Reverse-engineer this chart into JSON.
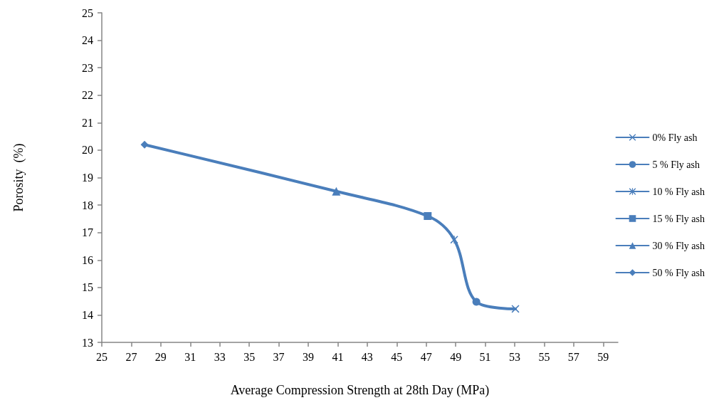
{
  "chart_data": {
    "type": "line",
    "xlabel": "Average Compression Strength at 28th Day (MPa)",
    "ylabel": "Porosity  (%)",
    "xlim": [
      25,
      60
    ],
    "xticks": [
      25,
      27,
      29,
      31,
      33,
      35,
      37,
      39,
      41,
      43,
      45,
      47,
      49,
      51,
      53,
      55,
      57,
      59
    ],
    "ylim": [
      13,
      25
    ],
    "yticks": [
      13,
      14,
      15,
      16,
      17,
      18,
      19,
      20,
      21,
      22,
      23,
      24,
      25
    ],
    "grid": false,
    "legend": "right",
    "line_style": "solid",
    "series": [
      {
        "color": "#4a7ebb",
        "marker": "none",
        "x": [
          27.9,
          40.9,
          47.1,
          48.9,
          50.4,
          53.05
        ],
        "values": [
          20.2,
          18.5,
          17.6,
          16.74,
          14.48,
          14.22
        ]
      },
      {
        "name": "0% Fly ash",
        "color": "#4a7ebb",
        "marker": "cross",
        "x": [
          53.05
        ],
        "values": [
          14.22
        ]
      },
      {
        "name": "5 % Fly ash",
        "color": "#4a7ebb",
        "marker": "circle",
        "x": [
          50.4
        ],
        "values": [
          14.48
        ]
      },
      {
        "name": "10 % Fly ash",
        "color": "#4a7ebb",
        "marker": "star",
        "x": [
          48.9
        ],
        "values": [
          16.74
        ]
      },
      {
        "name": "15 % Fly ash",
        "color": "#4a7ebb",
        "marker": "square",
        "x": [
          47.1
        ],
        "values": [
          17.6
        ]
      },
      {
        "name": "30 % Fly ash",
        "color": "#4a7ebb",
        "marker": "triangle",
        "x": [
          40.9
        ],
        "values": [
          18.5
        ]
      },
      {
        "name": "50 % Fly ash",
        "color": "#4a7ebb",
        "marker": "diamond",
        "x": [
          27.9
        ],
        "values": [
          20.2
        ]
      }
    ]
  }
}
